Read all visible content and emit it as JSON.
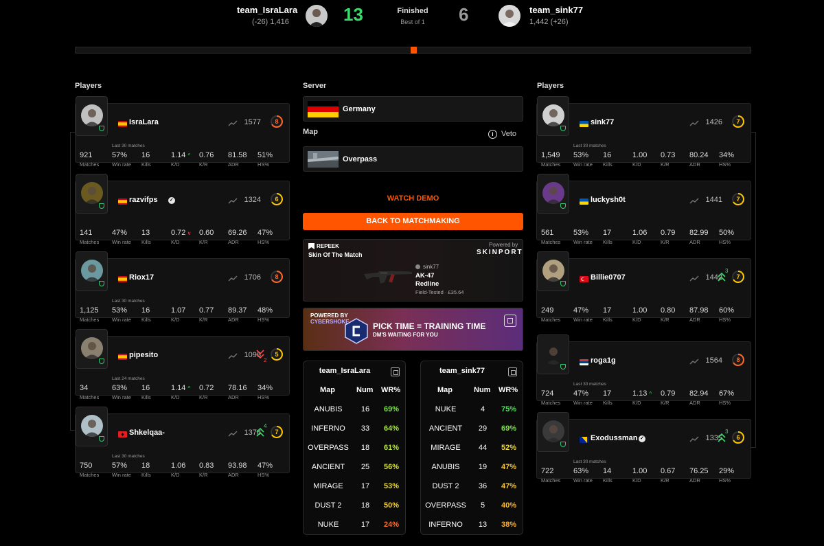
{
  "header": {
    "left_team": "team_IsraLara",
    "left_elo": "(-26) 1,416",
    "left_score": "13",
    "status": "Finished",
    "best_of": "Best of 1",
    "right_score": "6",
    "right_team": "team_sink77",
    "right_elo": "1,442 (+26)",
    "colors": {
      "win": "#3dd96b",
      "lose": "#9a9a9a",
      "accent": "#ff5500"
    }
  },
  "labels": {
    "players_left": "Players",
    "players_right": "Players",
    "server": "Server",
    "map": "Map",
    "veto": "Veto",
    "last30": "Last 30 matches",
    "last24": "Last 24 matches",
    "stat_labels": [
      "Matches",
      "Win rate",
      "Kills",
      "K/D",
      "K/R",
      "ADR",
      "HS%"
    ]
  },
  "left_players": [
    {
      "name": "IsraLara",
      "flag": "es",
      "elo": "1577",
      "level": "8",
      "level_color": "#ff6a2a",
      "verified": false,
      "recent": "Last 30 matches",
      "stats": [
        "921",
        "57%",
        "16",
        "1.14",
        "0.76",
        "81.58",
        "51%"
      ],
      "kd_trend": "up"
    },
    {
      "name": "razvifps",
      "flag": "es",
      "elo": "1324",
      "level": "6",
      "level_color": "#ffc800",
      "verified": true,
      "recent": "",
      "stats": [
        "141",
        "47%",
        "13",
        "0.72",
        "0.60",
        "69.26",
        "47%"
      ],
      "kd_trend": "down"
    },
    {
      "name": "Riox17",
      "flag": "es",
      "elo": "1706",
      "level": "8",
      "level_color": "#ff6a2a",
      "verified": false,
      "recent": "Last 30 matches",
      "stats": [
        "1,125",
        "53%",
        "16",
        "1.07",
        "0.77",
        "89.37",
        "48%"
      ],
      "kd_trend": ""
    },
    {
      "name": "pipesito",
      "flag": "es",
      "elo": "1096",
      "level": "5",
      "level_color": "#ffc800",
      "verified": false,
      "recent": "Last 24 matches",
      "stats": [
        "34",
        "63%",
        "16",
        "1.14",
        "0.72",
        "78.16",
        "34%"
      ],
      "kd_trend": "up",
      "streak": "2",
      "streak_dir": "down"
    },
    {
      "name": "Shkelqaa-",
      "flag": "al",
      "elo": "1378",
      "level": "7",
      "level_color": "#ffc800",
      "verified": false,
      "recent": "Last 30 matches",
      "stats": [
        "750",
        "57%",
        "18",
        "1.06",
        "0.83",
        "93.98",
        "47%"
      ],
      "kd_trend": "",
      "streak": "4",
      "streak_dir": "up"
    }
  ],
  "right_players": [
    {
      "name": "sink77",
      "flag": "ua",
      "elo": "1426",
      "level": "7",
      "level_color": "#ffc800",
      "verified": false,
      "recent": "Last 30 matches",
      "stats": [
        "1,549",
        "53%",
        "16",
        "1.00",
        "0.73",
        "80.24",
        "34%"
      ],
      "kd_trend": ""
    },
    {
      "name": "luckysh0t",
      "flag": "ua",
      "elo": "1441",
      "level": "7",
      "level_color": "#ffc800",
      "verified": false,
      "recent": "",
      "stats": [
        "561",
        "53%",
        "17",
        "1.06",
        "0.79",
        "82.99",
        "50%"
      ],
      "kd_trend": ""
    },
    {
      "name": "Billie0707",
      "flag": "tr",
      "elo": "1442",
      "level": "7",
      "level_color": "#ffc800",
      "verified": false,
      "recent": "",
      "stats": [
        "249",
        "47%",
        "17",
        "1.00",
        "0.80",
        "87.98",
        "60%"
      ],
      "kd_trend": "",
      "streak": "3",
      "streak_dir": "up"
    },
    {
      "name": "roga1g",
      "flag": "rs",
      "elo": "1564",
      "level": "8",
      "level_color": "#ff6a2a",
      "verified": false,
      "recent": "Last 30 matches",
      "stats": [
        "724",
        "47%",
        "17",
        "1.13",
        "0.79",
        "82.94",
        "67%"
      ],
      "kd_trend": "up"
    },
    {
      "name": "Exodussman",
      "flag": "ba",
      "elo": "1335",
      "level": "6",
      "level_color": "#ffc800",
      "verified": true,
      "recent": "Last 30 matches",
      "stats": [
        "722",
        "63%",
        "14",
        "1.00",
        "0.67",
        "76.25",
        "29%"
      ],
      "kd_trend": "",
      "streak": "3",
      "streak_dir": "up"
    }
  ],
  "server": {
    "name": "Germany"
  },
  "map": {
    "name": "Overpass"
  },
  "buttons": {
    "watch_demo": "WATCH DEMO",
    "back": "BACK TO MATCHMAKING"
  },
  "skin": {
    "brand": "REPEEK",
    "title": "Skin Of The Match",
    "powered_by": "Powered by",
    "partner": "SKINPORT",
    "owner": "sink77",
    "weapon": "AK-47",
    "skin_name": "Redline",
    "condition": "Field-Tested · £35.64"
  },
  "ad": {
    "powered": "POWERED BY",
    "brand": "CYBERSHOKE",
    "headline": "PICK TIME = TRAINING TIME",
    "sub": "DM'S WAITING FOR YOU"
  },
  "wr_tables": [
    {
      "team": "team_IsraLara",
      "headers": [
        "Map",
        "Num",
        "WR%"
      ],
      "rows": [
        {
          "map": "ANUBIS",
          "num": "16",
          "wr": "69%",
          "color": "#7ee04a"
        },
        {
          "map": "INFERNO",
          "num": "33",
          "wr": "64%",
          "color": "#a5e046"
        },
        {
          "map": "OVERPASS",
          "num": "18",
          "wr": "61%",
          "color": "#b5e046"
        },
        {
          "map": "ANCIENT",
          "num": "25",
          "wr": "56%",
          "color": "#d5e040"
        },
        {
          "map": "MIRAGE",
          "num": "17",
          "wr": "53%",
          "color": "#e8d83a"
        },
        {
          "map": "DUST 2",
          "num": "18",
          "wr": "50%",
          "color": "#f2d038"
        },
        {
          "map": "NUKE",
          "num": "17",
          "wr": "24%",
          "color": "#ff6a2a"
        }
      ]
    },
    {
      "team": "team_sink77",
      "headers": [
        "Map",
        "Num",
        "WR%"
      ],
      "rows": [
        {
          "map": "NUKE",
          "num": "4",
          "wr": "75%",
          "color": "#4de05a"
        },
        {
          "map": "ANCIENT",
          "num": "29",
          "wr": "69%",
          "color": "#7ee04a"
        },
        {
          "map": "MIRAGE",
          "num": "44",
          "wr": "52%",
          "color": "#ecd83a"
        },
        {
          "map": "ANUBIS",
          "num": "19",
          "wr": "47%",
          "color": "#f5c838"
        },
        {
          "map": "DUST 2",
          "num": "36",
          "wr": "47%",
          "color": "#f5c838"
        },
        {
          "map": "OVERPASS",
          "num": "5",
          "wr": "40%",
          "color": "#f8b830"
        },
        {
          "map": "INFERNO",
          "num": "13",
          "wr": "38%",
          "color": "#fab030"
        }
      ]
    }
  ]
}
